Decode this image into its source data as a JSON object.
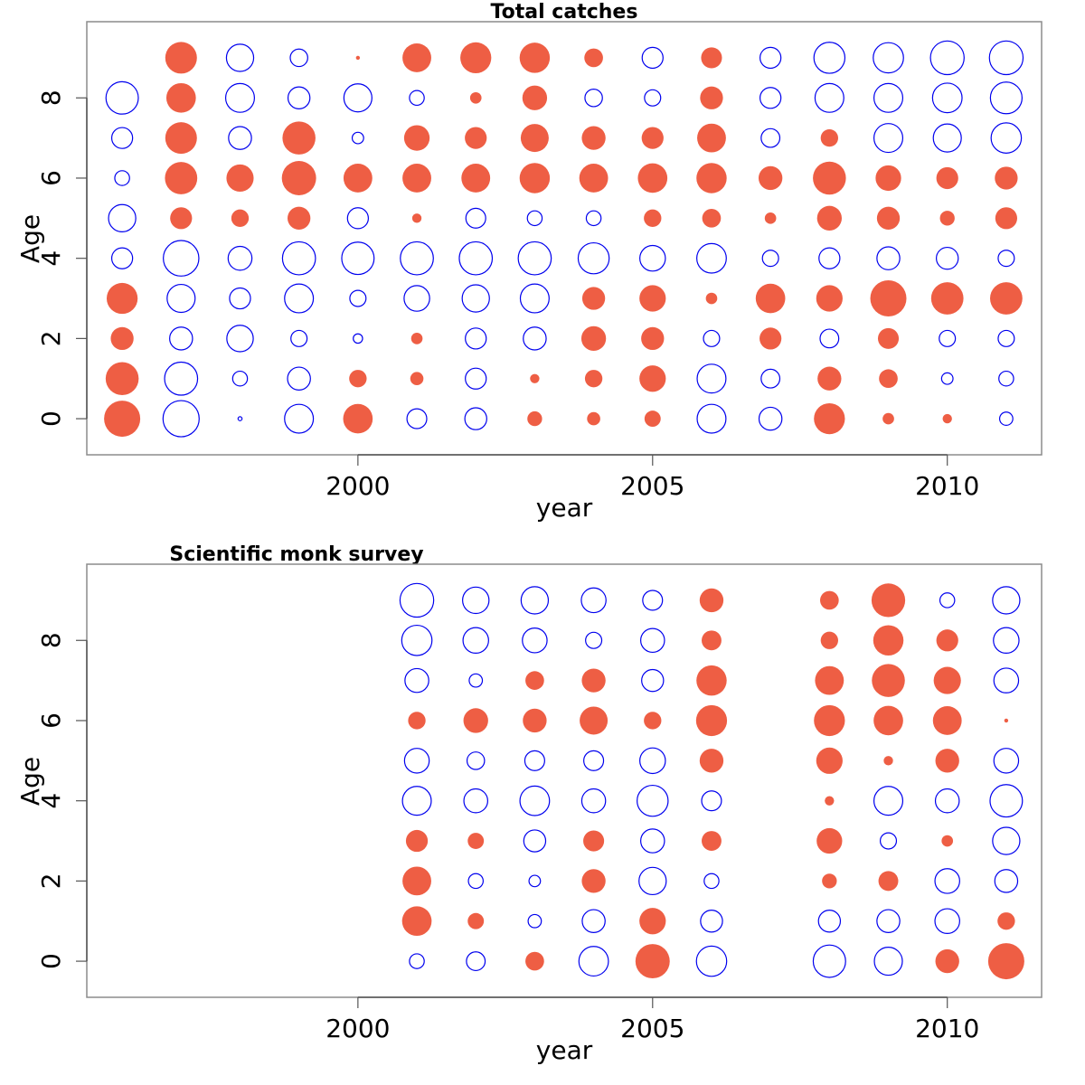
{
  "chart_data": [
    {
      "type": "scatter",
      "subtype": "bubble",
      "title": "Total catches",
      "xlabel": "year",
      "ylabel": "Age",
      "xlim": [
        1995.4,
        2011.6
      ],
      "ylim": [
        -0.9,
        9.9
      ],
      "xticks": [
        2000,
        2005,
        2010
      ],
      "yticks": [
        0,
        2,
        4,
        6,
        8
      ],
      "grid": false,
      "legend": "none",
      "encoding": {
        "positive": "filled",
        "negative": "open"
      },
      "colors": {
        "positive": "#EE5E44",
        "negative": "#0000EE"
      },
      "years": [
        1996,
        1997,
        1998,
        1999,
        2000,
        2001,
        2002,
        2003,
        2004,
        2005,
        2006,
        2007,
        2008,
        2009,
        2010,
        2011
      ],
      "ages": [
        0,
        1,
        2,
        3,
        4,
        5,
        6,
        7,
        8,
        9
      ],
      "values": [
        [
          3.0,
          -3.0,
          -0.1,
          -1.9,
          2.0,
          -0.9,
          -1.1,
          0.5,
          0.4,
          0.6,
          -1.9,
          -1.2,
          2.2,
          0.3,
          0.2,
          -0.4
        ],
        [
          2.5,
          -2.5,
          -0.5,
          -1.2,
          0.7,
          0.4,
          -1.0,
          0.2,
          0.7,
          1.6,
          -1.9,
          -0.8,
          1.3,
          0.8,
          -0.3,
          -0.5
        ],
        [
          1.2,
          -1.2,
          -1.6,
          -0.6,
          -0.2,
          0.3,
          -1.0,
          -1.2,
          1.4,
          1.2,
          -0.6,
          1.1,
          -0.8,
          1.0,
          -0.6,
          -0.6
        ],
        [
          2.2,
          -1.8,
          -1.0,
          -1.9,
          -0.6,
          -1.5,
          -1.7,
          -1.9,
          1.2,
          1.6,
          0.3,
          2.0,
          1.6,
          3.0,
          2.4,
          2.4
        ],
        [
          -1.0,
          -2.9,
          -1.3,
          -2.5,
          -2.4,
          -2.5,
          -2.5,
          -2.5,
          -2.2,
          -1.5,
          -2.0,
          -0.6,
          -1.0,
          -1.2,
          -1.1,
          -0.6
        ],
        [
          -1.7,
          1.1,
          0.7,
          1.2,
          -1.0,
          0.2,
          -0.9,
          -0.5,
          -0.5,
          0.7,
          0.8,
          0.3,
          1.4,
          1.2,
          0.5,
          1.1
        ],
        [
          -0.5,
          2.4,
          1.7,
          2.7,
          1.9,
          1.9,
          1.9,
          2.1,
          1.9,
          2.0,
          2.1,
          1.3,
          2.5,
          1.5,
          1.1,
          1.2
        ],
        [
          -1.0,
          2.3,
          -1.2,
          2.5,
          -0.3,
          1.5,
          1.1,
          1.8,
          1.3,
          1.1,
          1.9,
          -0.8,
          0.7,
          -1.9,
          -1.8,
          -2.1
        ],
        [
          -2.4,
          2.0,
          -1.9,
          -1.1,
          -1.8,
          -0.5,
          0.3,
          1.4,
          -0.7,
          -0.6,
          1.2,
          -1.0,
          -1.9,
          -1.9,
          -2.0,
          -2.3
        ],
        [
          null,
          2.3,
          -1.7,
          -0.7,
          0.1,
          1.9,
          2.2,
          2.1,
          0.8,
          -1.0,
          1.0,
          -1.0,
          -2.2,
          -2.1,
          -2.6,
          -2.6
        ]
      ]
    },
    {
      "type": "scatter",
      "subtype": "bubble",
      "title": "Scientific monk survey",
      "xlabel": "year",
      "ylabel": "Age",
      "xlim": [
        1995.4,
        2011.6
      ],
      "ylim": [
        -0.9,
        9.9
      ],
      "xticks": [
        2000,
        2005,
        2010
      ],
      "yticks": [
        0,
        2,
        4,
        6,
        8
      ],
      "grid": false,
      "legend": "none",
      "encoding": {
        "positive": "filled",
        "negative": "open"
      },
      "colors": {
        "positive": "#EE5E44",
        "negative": "#0000EE"
      },
      "years": [
        2001,
        2002,
        2003,
        2004,
        2005,
        2006,
        2008,
        2009,
        2010,
        2011
      ],
      "ages": [
        0,
        1,
        2,
        3,
        4,
        5,
        6,
        7,
        8,
        9
      ],
      "values": [
        [
          -0.5,
          -0.8,
          0.8,
          -2.0,
          2.7,
          -2.1,
          -2.4,
          -1.8,
          1.3,
          3.0
        ],
        [
          2.0,
          0.6,
          -0.4,
          -1.2,
          1.6,
          -1.1,
          -1.1,
          -1.2,
          -1.4,
          0.7
        ],
        [
          1.9,
          -0.5,
          -0.3,
          1.3,
          -1.7,
          -0.5,
          0.5,
          0.9,
          -1.4,
          -1.2
        ],
        [
          1.1,
          0.6,
          -1.1,
          1.0,
          -1.3,
          0.9,
          1.5,
          -0.6,
          0.3,
          -1.7
        ],
        [
          -1.9,
          -1.3,
          -2.0,
          -1.3,
          -2.2,
          -0.9,
          0.2,
          -1.9,
          -1.3,
          -2.4
        ],
        [
          -1.4,
          -0.7,
          -0.9,
          -0.9,
          -1.5,
          1.3,
          1.6,
          0.2,
          1.3,
          -1.4
        ],
        [
          0.7,
          1.4,
          1.3,
          1.8,
          0.7,
          2.2,
          2.2,
          2.0,
          1.9,
          0.1
        ],
        [
          -1.3,
          -0.4,
          0.8,
          1.3,
          -1.1,
          2.1,
          1.9,
          2.5,
          1.7,
          -1.4
        ],
        [
          -2.1,
          -1.5,
          -1.4,
          -0.6,
          -1.3,
          0.9,
          0.7,
          2.1,
          1.1,
          -1.5
        ],
        [
          -2.6,
          -1.6,
          -1.7,
          -1.4,
          -0.9,
          1.3,
          0.8,
          2.6,
          -0.5,
          -1.7
        ]
      ]
    }
  ]
}
